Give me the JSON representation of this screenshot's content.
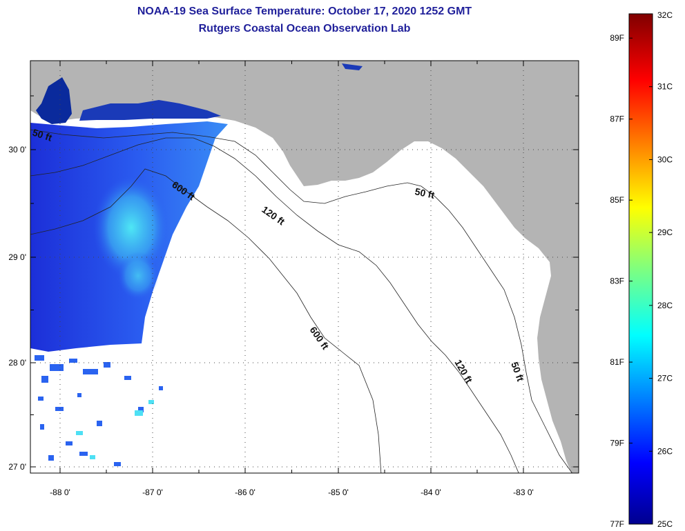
{
  "title_line1": "NOAA-19 Sea Surface Temperature:  October 17, 2020 1252 GMT",
  "title_line2": "Rutgers Coastal Ocean Observation Lab",
  "map": {
    "lon_labels": [
      "-88 0'",
      "-87 0'",
      "-86 0'",
      "-85 0'",
      "-84 0'",
      "-83 0'"
    ],
    "lat_labels": [
      "30 0'",
      "29 0'",
      "28 0'",
      "27 0'"
    ],
    "contour_labels": [
      "50 ft",
      "600 ft",
      "120 ft",
      "50 ft",
      "600 ft",
      "120 ft",
      "50 ft"
    ]
  },
  "colorbar": {
    "celsius_labels": [
      "32C",
      "31C",
      "30C",
      "29C",
      "28C",
      "27C",
      "26C",
      "25C"
    ],
    "fahrenheit_labels": [
      "89F",
      "87F",
      "85F",
      "83F",
      "81F",
      "79F",
      "77F"
    ]
  },
  "colors": {
    "land": "#b4b4b4",
    "cloud": "#ffffff",
    "title": "#1f1f9a"
  }
}
